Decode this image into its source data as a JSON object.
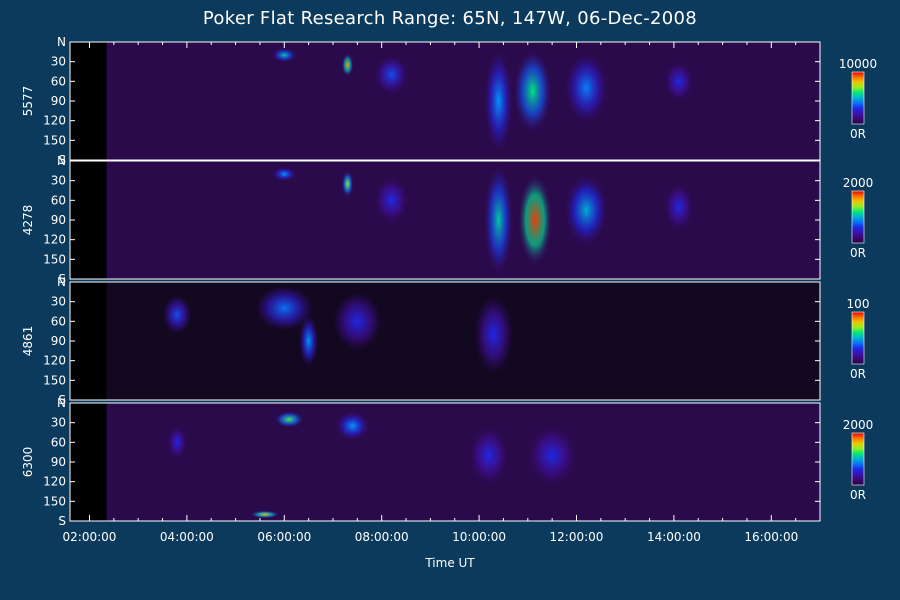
{
  "title": "Poker Flat Research Range: 65N, 147W, 06-Dec-2008",
  "chart_data": {
    "type": "heatmap",
    "title": "Poker Flat Research Range: 65N, 147W, 06-Dec-2008",
    "xlabel": "Time UT",
    "x_ticks": [
      "02:00:00",
      "04:00:00",
      "06:00:00",
      "08:00:00",
      "10:00:00",
      "12:00:00",
      "14:00:00",
      "16:00:00"
    ],
    "xlim_hours": [
      1.6,
      17.0
    ],
    "y_ticks": [
      "N",
      "30",
      "60",
      "90",
      "120",
      "150",
      "S"
    ],
    "y_tick_values": [
      0,
      30,
      60,
      90,
      120,
      150,
      180
    ],
    "panels": [
      {
        "ylabel": "5577",
        "colorbar": {
          "max_label": "10000",
          "min_label": "0R"
        },
        "features": [
          {
            "t_hours": 6.0,
            "y": 20,
            "intensity": 0.55,
            "width_h": 0.25,
            "height": 22
          },
          {
            "t_hours": 7.3,
            "y": 35,
            "intensity": 0.85,
            "width_h": 0.12,
            "height": 35
          },
          {
            "t_hours": 8.2,
            "y": 50,
            "intensity": 0.35,
            "width_h": 0.35,
            "height": 60
          },
          {
            "t_hours": 10.4,
            "y": 90,
            "intensity": 0.45,
            "width_h": 0.3,
            "height": 160
          },
          {
            "t_hours": 11.1,
            "y": 75,
            "intensity": 0.6,
            "width_h": 0.4,
            "height": 130
          },
          {
            "t_hours": 12.2,
            "y": 70,
            "intensity": 0.42,
            "width_h": 0.45,
            "height": 110
          },
          {
            "t_hours": 14.1,
            "y": 60,
            "intensity": 0.3,
            "width_h": 0.3,
            "height": 60
          }
        ]
      },
      {
        "ylabel": "4278",
        "colorbar": {
          "max_label": "2000",
          "min_label": "0R"
        },
        "features": [
          {
            "t_hours": 6.0,
            "y": 20,
            "intensity": 0.45,
            "width_h": 0.25,
            "height": 22
          },
          {
            "t_hours": 7.3,
            "y": 35,
            "intensity": 0.7,
            "width_h": 0.12,
            "height": 40
          },
          {
            "t_hours": 8.2,
            "y": 60,
            "intensity": 0.3,
            "width_h": 0.35,
            "height": 70
          },
          {
            "t_hours": 10.4,
            "y": 90,
            "intensity": 0.55,
            "width_h": 0.3,
            "height": 170
          },
          {
            "t_hours": 11.15,
            "y": 90,
            "intensity": 0.95,
            "width_h": 0.35,
            "height": 140
          },
          {
            "t_hours": 12.2,
            "y": 75,
            "intensity": 0.5,
            "width_h": 0.45,
            "height": 110
          },
          {
            "t_hours": 14.1,
            "y": 70,
            "intensity": 0.3,
            "width_h": 0.3,
            "height": 70
          }
        ]
      },
      {
        "ylabel": "4861",
        "colorbar": {
          "max_label": "100",
          "min_label": "0R"
        },
        "features": [
          {
            "t_hours": 3.8,
            "y": 50,
            "intensity": 0.35,
            "width_h": 0.3,
            "height": 60
          },
          {
            "t_hours": 6.0,
            "y": 40,
            "intensity": 0.4,
            "width_h": 0.6,
            "height": 70
          },
          {
            "t_hours": 6.5,
            "y": 90,
            "intensity": 0.45,
            "width_h": 0.2,
            "height": 80
          },
          {
            "t_hours": 7.5,
            "y": 60,
            "intensity": 0.3,
            "width_h": 0.5,
            "height": 90
          },
          {
            "t_hours": 10.3,
            "y": 80,
            "intensity": 0.3,
            "width_h": 0.4,
            "height": 120
          }
        ]
      },
      {
        "ylabel": "6300",
        "colorbar": {
          "max_label": "2000",
          "min_label": "0R"
        },
        "features": [
          {
            "t_hours": 3.8,
            "y": 60,
            "intensity": 0.3,
            "width_h": 0.2,
            "height": 50
          },
          {
            "t_hours": 6.1,
            "y": 25,
            "intensity": 0.65,
            "width_h": 0.3,
            "height": 25
          },
          {
            "t_hours": 7.4,
            "y": 35,
            "intensity": 0.45,
            "width_h": 0.35,
            "height": 45
          },
          {
            "t_hours": 5.6,
            "y": 170,
            "intensity": 0.8,
            "width_h": 0.3,
            "height": 12
          },
          {
            "t_hours": 10.2,
            "y": 80,
            "intensity": 0.3,
            "width_h": 0.4,
            "height": 90
          },
          {
            "t_hours": 11.5,
            "y": 80,
            "intensity": 0.3,
            "width_h": 0.5,
            "height": 90
          }
        ]
      }
    ]
  }
}
